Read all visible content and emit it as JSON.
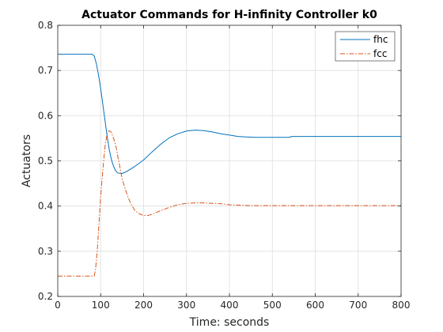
{
  "chart_data": {
    "type": "line",
    "title": "Actuator Commands for H-infinity Controller k0",
    "xlabel": "Time: seconds",
    "ylabel": "Actuators",
    "xlim": [
      0,
      800
    ],
    "ylim": [
      0.2,
      0.8
    ],
    "xticks": [
      0,
      100,
      200,
      300,
      400,
      500,
      600,
      700,
      800
    ],
    "yticks": [
      0.2,
      0.3,
      0.4,
      0.5,
      0.6,
      0.7,
      0.8
    ],
    "grid": true,
    "legend_position": "top-right",
    "series": [
      {
        "name": "fhc",
        "color": "#0072BD",
        "line_style": "solid",
        "x": [
          0,
          80,
          85,
          90,
          95,
          100,
          105,
          110,
          115,
          120,
          125,
          130,
          135,
          140,
          150,
          160,
          170,
          180,
          190,
          200,
          220,
          240,
          260,
          280,
          300,
          320,
          340,
          360,
          380,
          400,
          420,
          440,
          460,
          480,
          500,
          520,
          540,
          545,
          600,
          700,
          800
        ],
        "y": [
          0.736,
          0.736,
          0.732,
          0.715,
          0.69,
          0.66,
          0.625,
          0.59,
          0.555,
          0.525,
          0.503,
          0.488,
          0.478,
          0.473,
          0.472,
          0.476,
          0.482,
          0.488,
          0.495,
          0.502,
          0.52,
          0.537,
          0.551,
          0.56,
          0.566,
          0.568,
          0.567,
          0.564,
          0.56,
          0.557,
          0.554,
          0.553,
          0.552,
          0.552,
          0.552,
          0.552,
          0.552,
          0.554,
          0.554,
          0.554,
          0.554
        ]
      },
      {
        "name": "fcc",
        "color": "#D95319",
        "line_style": "dashdot",
        "x": [
          0,
          85,
          88,
          92,
          96,
          100,
          105,
          110,
          115,
          120,
          125,
          130,
          135,
          140,
          145,
          150,
          160,
          170,
          180,
          190,
          200,
          210,
          220,
          230,
          240,
          260,
          280,
          300,
          320,
          340,
          360,
          380,
          400,
          420,
          450,
          500,
          550,
          600,
          700,
          800
        ],
        "y": [
          0.245,
          0.245,
          0.26,
          0.3,
          0.36,
          0.42,
          0.48,
          0.53,
          0.56,
          0.567,
          0.563,
          0.55,
          0.535,
          0.51,
          0.485,
          0.46,
          0.43,
          0.405,
          0.39,
          0.383,
          0.379,
          0.379,
          0.382,
          0.386,
          0.39,
          0.397,
          0.403,
          0.406,
          0.407,
          0.407,
          0.406,
          0.405,
          0.403,
          0.402,
          0.401,
          0.401,
          0.401,
          0.401,
          0.401,
          0.401
        ]
      }
    ]
  }
}
